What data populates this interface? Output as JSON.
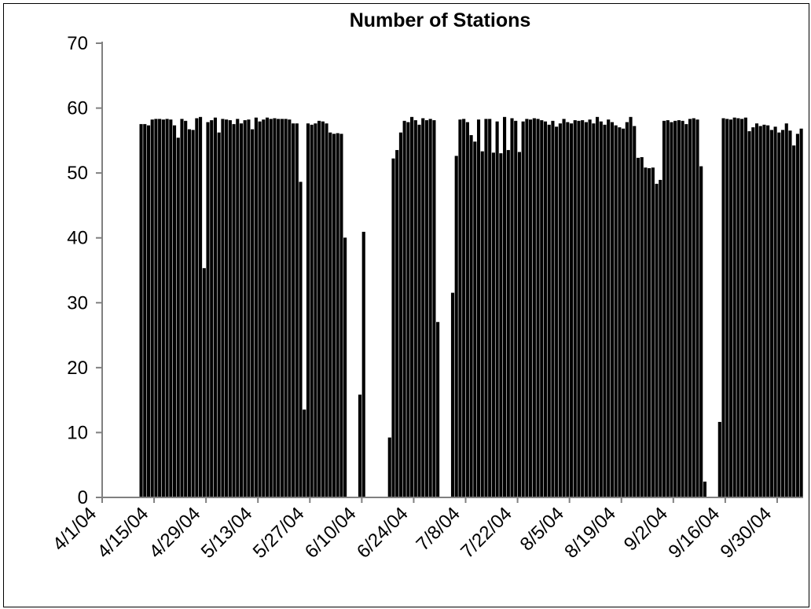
{
  "chart_data": {
    "type": "bar",
    "title": "Number of Stations",
    "xlabel": "",
    "ylabel": "",
    "ylim": [
      0,
      70
    ],
    "yticks": [
      0,
      10,
      20,
      30,
      40,
      50,
      60,
      70
    ],
    "x_start": "4/1/04",
    "x_end": "10/6/04",
    "x_tick_labels": [
      "4/1/04",
      "4/15/04",
      "4/29/04",
      "5/13/04",
      "5/27/04",
      "6/10/04",
      "6/24/04",
      "7/8/04",
      "7/22/04",
      "8/5/04",
      "8/19/04",
      "9/2/04",
      "9/16/04",
      "9/30/04"
    ],
    "grid": false,
    "legend": "none",
    "bar_color": "#000000",
    "categories": [
      "4/1/04",
      "4/2/04",
      "4/3/04",
      "4/4/04",
      "4/5/04",
      "4/6/04",
      "4/7/04",
      "4/8/04",
      "4/9/04",
      "4/10/04",
      "4/11/04",
      "4/12/04",
      "4/13/04",
      "4/14/04",
      "4/15/04",
      "4/16/04",
      "4/17/04",
      "4/18/04",
      "4/19/04",
      "4/20/04",
      "4/21/04",
      "4/22/04",
      "4/23/04",
      "4/24/04",
      "4/25/04",
      "4/26/04",
      "4/27/04",
      "4/28/04",
      "4/29/04",
      "4/30/04",
      "5/1/04",
      "5/2/04",
      "5/3/04",
      "5/4/04",
      "5/5/04",
      "5/6/04",
      "5/7/04",
      "5/8/04",
      "5/9/04",
      "5/10/04",
      "5/11/04",
      "5/12/04",
      "5/13/04",
      "5/14/04",
      "5/15/04",
      "5/16/04",
      "5/17/04",
      "5/18/04",
      "5/19/04",
      "5/20/04",
      "5/21/04",
      "5/22/04",
      "5/23/04",
      "5/24/04",
      "5/25/04",
      "5/26/04",
      "5/27/04",
      "5/28/04",
      "5/29/04",
      "5/30/04",
      "5/31/04",
      "6/1/04",
      "6/2/04",
      "6/3/04",
      "6/4/04",
      "6/5/04",
      "6/6/04",
      "6/7/04",
      "6/8/04",
      "6/9/04",
      "6/10/04",
      "6/11/04",
      "6/12/04",
      "6/13/04",
      "6/14/04",
      "6/15/04",
      "6/16/04",
      "6/17/04",
      "6/18/04",
      "6/19/04",
      "6/20/04",
      "6/21/04",
      "6/22/04",
      "6/23/04",
      "6/24/04",
      "6/25/04",
      "6/26/04",
      "6/27/04",
      "6/28/04",
      "6/29/04",
      "6/30/04",
      "7/1/04",
      "7/2/04",
      "7/3/04",
      "7/4/04",
      "7/5/04",
      "7/6/04",
      "7/7/04",
      "7/8/04",
      "7/9/04",
      "7/10/04",
      "7/11/04",
      "7/12/04",
      "7/13/04",
      "7/14/04",
      "7/15/04",
      "7/16/04",
      "7/17/04",
      "7/18/04",
      "7/19/04",
      "7/20/04",
      "7/21/04",
      "7/22/04",
      "7/23/04",
      "7/24/04",
      "7/25/04",
      "7/26/04",
      "7/27/04",
      "7/28/04",
      "7/29/04",
      "7/30/04",
      "7/31/04",
      "8/1/04",
      "8/2/04",
      "8/3/04",
      "8/4/04",
      "8/5/04",
      "8/6/04",
      "8/7/04",
      "8/8/04",
      "8/9/04",
      "8/10/04",
      "8/11/04",
      "8/12/04",
      "8/13/04",
      "8/14/04",
      "8/15/04",
      "8/16/04",
      "8/17/04",
      "8/18/04",
      "8/19/04",
      "8/20/04",
      "8/21/04",
      "8/22/04",
      "8/23/04",
      "8/24/04",
      "8/25/04",
      "8/26/04",
      "8/27/04",
      "8/28/04",
      "8/29/04",
      "8/30/04",
      "8/31/04",
      "9/1/04",
      "9/2/04",
      "9/3/04",
      "9/4/04",
      "9/5/04",
      "9/6/04",
      "9/7/04",
      "9/8/04",
      "9/9/04",
      "9/10/04",
      "9/11/04",
      "9/12/04",
      "9/13/04",
      "9/14/04",
      "9/15/04",
      "9/16/04",
      "9/17/04",
      "9/18/04",
      "9/19/04",
      "9/20/04",
      "9/21/04",
      "9/22/04",
      "9/23/04",
      "9/24/04",
      "9/25/04",
      "9/26/04",
      "9/27/04",
      "9/28/04",
      "9/29/04",
      "9/30/04",
      "10/1/04",
      "10/2/04",
      "10/3/04",
      "10/4/04",
      "10/5/04",
      "10/6/04"
    ],
    "values": [
      0,
      0,
      0,
      0,
      0,
      0,
      0,
      0,
      0,
      0,
      57.5,
      57.5,
      57.3,
      58.2,
      58.3,
      58.3,
      58.2,
      58.3,
      58.2,
      57.3,
      55.4,
      58.3,
      58.0,
      56.7,
      56.6,
      58.4,
      58.6,
      35.3,
      57.8,
      58.1,
      58.5,
      56.2,
      58.3,
      58.2,
      58.1,
      57.5,
      58.3,
      57.6,
      58.1,
      58.2,
      56.7,
      58.5,
      57.9,
      58.2,
      58.5,
      58.3,
      58.4,
      58.3,
      58.3,
      58.3,
      58.2,
      57.6,
      57.6,
      48.6,
      13.5,
      57.6,
      57.4,
      57.6,
      58.0,
      57.9,
      57.6,
      56.2,
      56.0,
      56.1,
      56.0,
      40.0,
      0,
      0,
      0,
      15.8,
      40.9,
      0,
      0,
      0,
      0,
      0,
      0,
      9.2,
      52.2,
      53.5,
      56.2,
      58.0,
      57.8,
      58.6,
      58.1,
      57.4,
      58.4,
      58.1,
      58.3,
      58.1,
      27.0,
      0,
      0,
      0,
      31.5,
      52.6,
      58.2,
      58.3,
      57.8,
      55.8,
      54.8,
      58.2,
      53.3,
      58.3,
      58.3,
      53.1,
      57.9,
      53.0,
      58.6,
      53.5,
      58.4,
      58.0,
      53.2,
      57.9,
      58.3,
      58.2,
      58.4,
      58.3,
      58.1,
      57.9,
      57.4,
      58.0,
      57.1,
      57.6,
      58.3,
      57.8,
      57.6,
      58.1,
      58.0,
      58.1,
      57.8,
      58.2,
      57.6,
      58.6,
      57.9,
      57.4,
      58.2,
      57.8,
      57.3,
      57.0,
      56.8,
      57.8,
      58.6,
      57.2,
      52.3,
      52.4,
      50.8,
      50.7,
      50.8,
      48.3,
      48.9,
      58.0,
      58.1,
      57.8,
      58.0,
      58.1,
      58.0,
      57.5,
      58.3,
      58.4,
      58.2,
      51.0,
      2.4,
      0,
      0,
      0,
      11.6,
      58.4,
      58.3,
      58.2,
      58.5,
      58.4,
      58.3,
      58.5,
      56.4,
      57.0,
      57.6,
      57.2,
      57.4,
      57.3,
      56.6,
      57.1,
      56.2,
      56.6,
      57.6,
      56.5,
      54.2,
      56.0,
      56.8
    ]
  }
}
